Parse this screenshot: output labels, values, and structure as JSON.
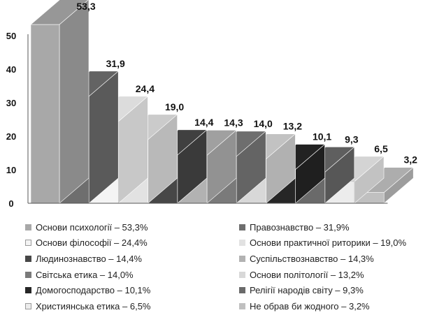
{
  "chart_data": {
    "type": "bar",
    "title": "",
    "xlabel": "",
    "ylabel": "",
    "ylim": [
      0,
      50
    ],
    "yticks": [
      "0",
      "10",
      "20",
      "30",
      "40",
      "50"
    ],
    "grid": false,
    "legend_position": "bottom",
    "categories": [
      "Основи психології",
      "Правознавство",
      "Основи філософії",
      "Основи практичної риторики",
      "Людинознавство",
      "Суспільствознавство",
      "Світська етика",
      "Основи політології",
      "Домогосподарство",
      "Релігії народів світу",
      "Християнська етика",
      "Не обрав би жодного"
    ],
    "values": [
      53.3,
      31.9,
      24.4,
      19.0,
      14.4,
      14.3,
      14.0,
      13.2,
      10.1,
      9.3,
      6.5,
      3.2
    ],
    "value_labels": [
      "53,3",
      "31,9",
      "24,4",
      "19,0",
      "14,4",
      "14,3",
      "14,0",
      "13,2",
      "10,1",
      "9,3",
      "6,5",
      "3,2"
    ],
    "legend_labels": [
      "Основи психології – 53,3%",
      "Правознавство – 31,9%",
      "Основи філософії – 24,4%",
      "Основи практичної риторики – 19,0%",
      "Людинознавство – 14,4%",
      "Суспільствознавство – 14,3%",
      "Світська етика – 14,0%",
      "Основи політології – 13,2%",
      "Домогосподарство – 10,1%",
      "Релігії народів світу – 9,3%",
      "Християнська етика – 6,5%",
      "Не обрав би жодного – 3,2%"
    ],
    "colors": [
      "#a8a8a8",
      "#6e6e6e",
      "#f4f4f4",
      "#e2e2e2",
      "#474747",
      "#b2b2b2",
      "#7a7a7a",
      "#d8d8d8",
      "#262626",
      "#6a6a6a",
      "#ececec",
      "#c0c0c0"
    ]
  }
}
